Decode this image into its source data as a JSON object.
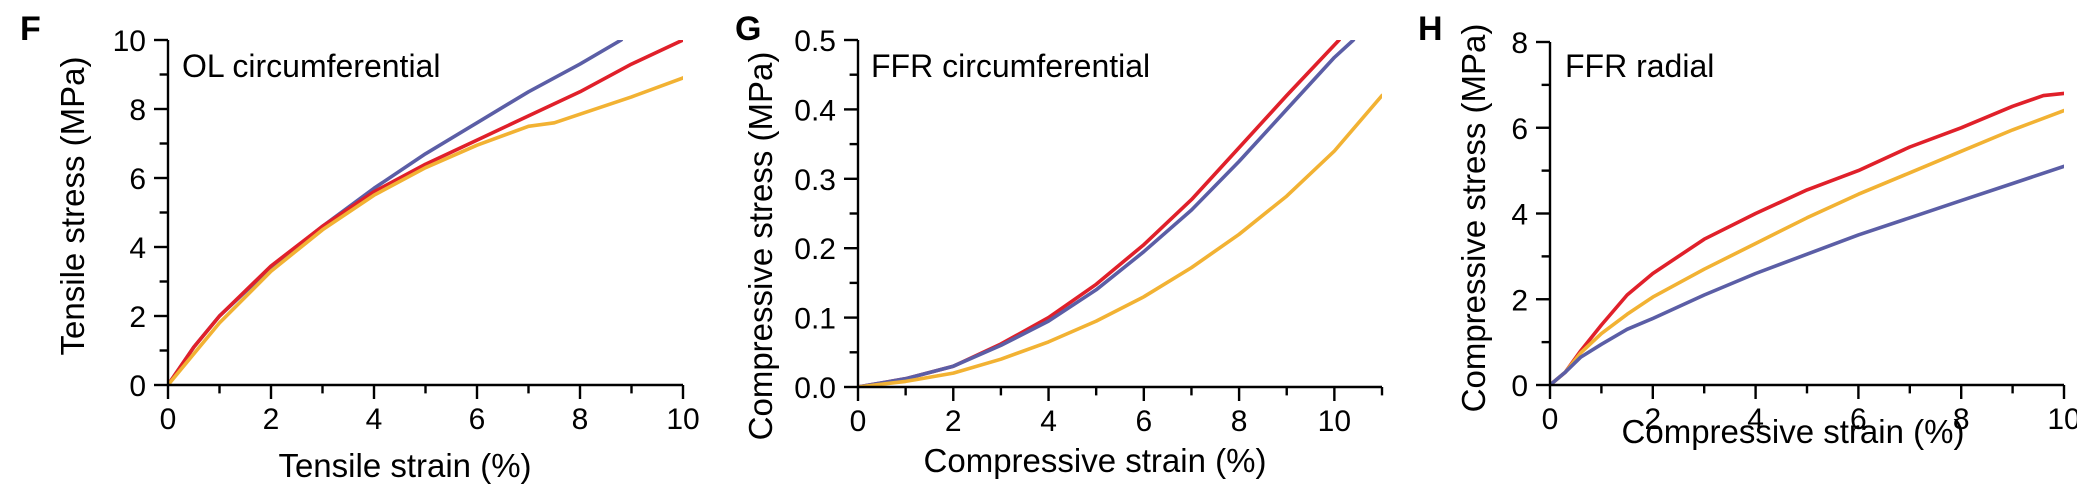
{
  "chart_data": [
    {
      "panel": "F",
      "type": "line",
      "title": "OL circumferential",
      "xlabel": "Tensile strain (%)",
      "ylabel": "Tensile stress (MPa)",
      "xlim": [
        0,
        10
      ],
      "ylim": [
        0,
        10
      ],
      "xticks": [
        0,
        2,
        4,
        6,
        8,
        10
      ],
      "yticks": [
        0,
        2,
        4,
        6,
        8,
        10
      ],
      "grid": false,
      "series": [
        {
          "color": "#5b5ea6",
          "x": [
            0,
            0.5,
            1,
            2,
            3,
            4,
            5,
            6,
            7,
            8,
            8.8
          ],
          "y": [
            0,
            1.1,
            2.0,
            3.4,
            4.6,
            5.7,
            6.7,
            7.6,
            8.5,
            9.3,
            10.0
          ]
        },
        {
          "color": "#e0202a",
          "x": [
            0,
            0.5,
            1,
            2,
            3,
            4,
            5,
            6,
            7,
            8,
            9,
            10
          ],
          "y": [
            0,
            1.1,
            2.0,
            3.45,
            4.6,
            5.6,
            6.4,
            7.1,
            7.8,
            8.5,
            9.3,
            10.0
          ]
        },
        {
          "color": "#f2b233",
          "x": [
            0,
            0.5,
            1,
            2,
            3,
            4,
            5,
            6,
            7,
            7.5,
            8,
            9,
            10
          ],
          "y": [
            0,
            0.9,
            1.8,
            3.3,
            4.5,
            5.5,
            6.3,
            6.95,
            7.5,
            7.6,
            7.85,
            8.35,
            8.9
          ]
        }
      ]
    },
    {
      "panel": "G",
      "type": "line",
      "title": "FFR circumferential",
      "xlabel": "Compressive strain (%)",
      "ylabel": "Compressive stress (MPa)",
      "xlim": [
        0,
        11
      ],
      "ylim": [
        0,
        0.5
      ],
      "xticks": [
        0,
        2,
        4,
        6,
        8,
        10
      ],
      "yticks": [
        0.0,
        0.1,
        0.2,
        0.3,
        0.4,
        0.5
      ],
      "ytick_labels": [
        "0.0",
        "0.1",
        "0.2",
        "0.3",
        "0.4",
        "0.5"
      ],
      "grid": false,
      "series": [
        {
          "color": "#e0202a",
          "x": [
            0,
            1,
            2,
            3,
            4,
            5,
            6,
            7,
            8,
            9,
            10.1
          ],
          "y": [
            0,
            0.012,
            0.03,
            0.062,
            0.1,
            0.148,
            0.205,
            0.27,
            0.345,
            0.42,
            0.5
          ]
        },
        {
          "color": "#5b5ea6",
          "x": [
            0,
            1,
            2,
            3,
            4,
            5,
            6,
            7,
            8,
            9,
            10,
            10.4
          ],
          "y": [
            0,
            0.012,
            0.03,
            0.06,
            0.095,
            0.14,
            0.195,
            0.255,
            0.325,
            0.4,
            0.475,
            0.5
          ]
        },
        {
          "color": "#f2b233",
          "x": [
            0,
            1,
            2,
            3,
            4,
            5,
            6,
            7,
            8,
            9,
            10,
            11
          ],
          "y": [
            0,
            0.008,
            0.02,
            0.04,
            0.065,
            0.095,
            0.13,
            0.172,
            0.22,
            0.275,
            0.34,
            0.42
          ]
        }
      ]
    },
    {
      "panel": "H",
      "type": "line",
      "title": "FFR radial",
      "xlabel": "Compressive strain (%)",
      "ylabel": "Compressive stress (MPa)",
      "xlim": [
        0,
        10
      ],
      "ylim": [
        0,
        8
      ],
      "xticks": [
        0,
        2,
        4,
        6,
        8,
        10
      ],
      "yticks": [
        0,
        2,
        4,
        6,
        8
      ],
      "grid": false,
      "series": [
        {
          "color": "#e0202a",
          "x": [
            0,
            0.3,
            0.6,
            1,
            1.5,
            2,
            3,
            4,
            5,
            6,
            7,
            8,
            9,
            9.6,
            10
          ],
          "y": [
            0,
            0.3,
            0.8,
            1.4,
            2.1,
            2.6,
            3.4,
            4.0,
            4.55,
            5.0,
            5.55,
            6.0,
            6.5,
            6.75,
            6.8
          ]
        },
        {
          "color": "#f2b233",
          "x": [
            0,
            0.3,
            0.6,
            1,
            1.5,
            2,
            3,
            4,
            5,
            6,
            7,
            8,
            9,
            10
          ],
          "y": [
            0,
            0.3,
            0.75,
            1.2,
            1.65,
            2.05,
            2.7,
            3.3,
            3.9,
            4.45,
            4.95,
            5.45,
            5.95,
            6.4
          ]
        },
        {
          "color": "#5b5ea6",
          "x": [
            0,
            0.3,
            0.6,
            1,
            1.5,
            2,
            3,
            4,
            5,
            6,
            7,
            8,
            9,
            10
          ],
          "y": [
            0,
            0.3,
            0.65,
            0.95,
            1.3,
            1.55,
            2.1,
            2.6,
            3.05,
            3.5,
            3.9,
            4.3,
            4.7,
            5.1
          ]
        }
      ]
    }
  ]
}
